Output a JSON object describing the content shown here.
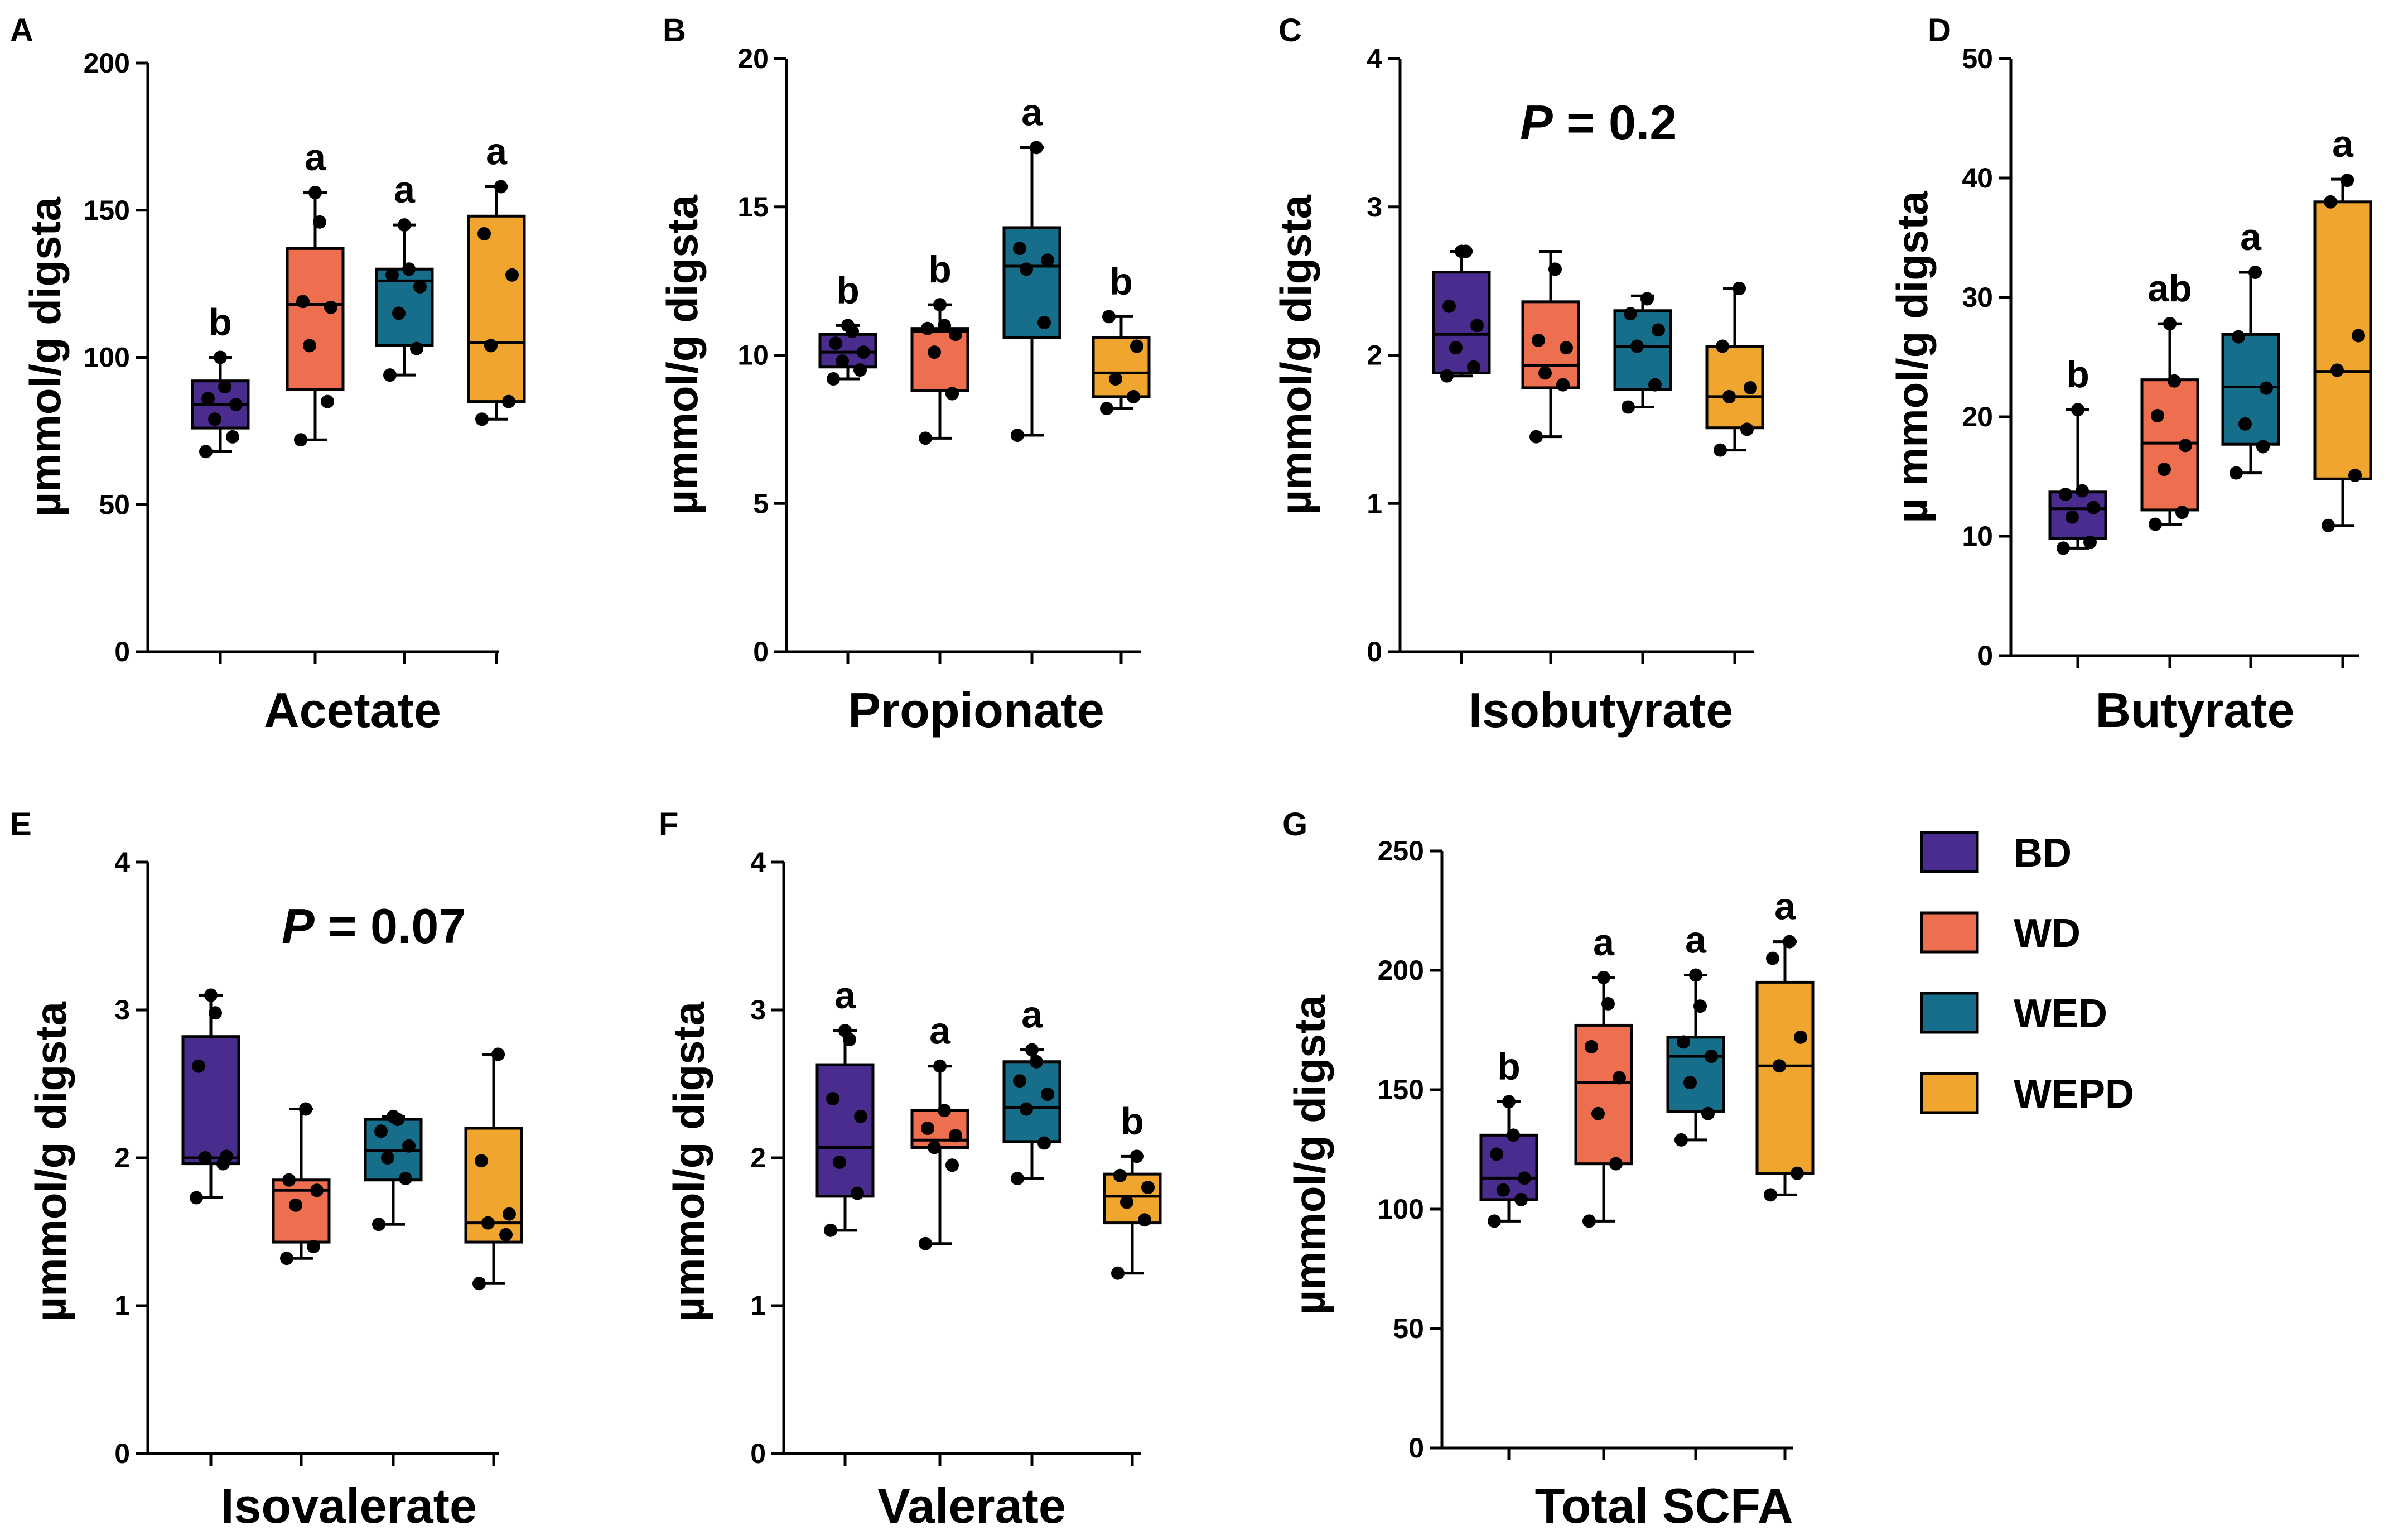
{
  "legend": [
    {
      "key": "BD",
      "label": "BD",
      "color": "#4A2C8F"
    },
    {
      "key": "WD",
      "label": "WD",
      "color": "#EE6E50"
    },
    {
      "key": "WED",
      "label": "WED",
      "color": "#166E8A"
    },
    {
      "key": "WEPD",
      "label": "WEPD",
      "color": "#EFA52E"
    }
  ],
  "chart_data": [
    {
      "id": "A",
      "type": "box",
      "panel_label": "A",
      "title": "",
      "xlabel": "Acetate",
      "ylabel": "µmmol/g digsta",
      "ylim": [
        0,
        200
      ],
      "yticks": [
        0,
        50,
        100,
        150,
        200
      ],
      "pvalue": null,
      "groups": [
        {
          "name": "BD",
          "min": 68,
          "q1": 76,
          "median": 84,
          "q3": 92,
          "max": 100,
          "points": [
            68,
            73,
            79,
            84,
            86,
            90,
            100
          ],
          "letter": "b"
        },
        {
          "name": "WD",
          "min": 72,
          "q1": 89,
          "median": 118,
          "q3": 137,
          "max": 156,
          "points": [
            72,
            85,
            104,
            117,
            119,
            146,
            156
          ],
          "letter": "a"
        },
        {
          "name": "WED",
          "min": 94,
          "q1": 104,
          "median": 126,
          "q3": 130,
          "max": 145,
          "points": [
            94,
            103,
            115,
            124,
            128,
            130,
            145
          ],
          "letter": "a"
        },
        {
          "name": "WEPD",
          "min": 79,
          "q1": 85,
          "median": 105,
          "q3": 148,
          "max": 158,
          "points": [
            79,
            85,
            104,
            128,
            142,
            158
          ],
          "letter": "a"
        }
      ]
    },
    {
      "id": "B",
      "type": "box",
      "panel_label": "B",
      "title": "",
      "xlabel": "Propionate",
      "ylabel": "µmmol/g digsta",
      "ylim": [
        0,
        20
      ],
      "yticks": [
        0,
        5,
        10,
        15,
        20
      ],
      "pvalue": null,
      "groups": [
        {
          "name": "BD",
          "min": 9.2,
          "q1": 9.6,
          "median": 10.1,
          "q3": 10.7,
          "max": 11.0,
          "points": [
            9.2,
            9.5,
            9.8,
            10.1,
            10.4,
            10.8,
            11.0
          ],
          "letter": "b"
        },
        {
          "name": "WD",
          "min": 7.2,
          "q1": 8.8,
          "median": 10.8,
          "q3": 10.9,
          "max": 11.7,
          "points": [
            7.2,
            8.7,
            10.1,
            10.7,
            10.9,
            11.0,
            11.7
          ],
          "letter": "b"
        },
        {
          "name": "WED",
          "min": 7.3,
          "q1": 10.6,
          "median": 13.0,
          "q3": 14.3,
          "max": 17.0,
          "points": [
            7.3,
            11.1,
            12.9,
            13.2,
            13.6,
            17.0
          ],
          "letter": "a"
        },
        {
          "name": "WEPD",
          "min": 8.2,
          "q1": 8.6,
          "median": 9.4,
          "q3": 10.6,
          "max": 11.3,
          "points": [
            8.2,
            8.6,
            9.2,
            10.3,
            11.3
          ],
          "letter": "b"
        }
      ]
    },
    {
      "id": "C",
      "type": "box",
      "panel_label": "C",
      "title": "",
      "xlabel": "Isobutyrate",
      "ylabel": "µmmol/g digsta",
      "ylim": [
        0,
        4
      ],
      "yticks": [
        0,
        1,
        2,
        3,
        4
      ],
      "pvalue": {
        "prefix": "P",
        "text": " = 0.2"
      },
      "groups": [
        {
          "name": "BD",
          "min": 1.86,
          "q1": 1.88,
          "median": 2.14,
          "q3": 2.56,
          "max": 2.7,
          "points": [
            1.86,
            1.92,
            2.05,
            2.2,
            2.33,
            2.7,
            2.7
          ],
          "letter": ""
        },
        {
          "name": "WD",
          "min": 1.45,
          "q1": 1.78,
          "median": 1.93,
          "q3": 2.36,
          "max": 2.7,
          "points": [
            1.45,
            1.8,
            1.88,
            2.05,
            2.1,
            2.58
          ],
          "letter": ""
        },
        {
          "name": "WED",
          "min": 1.65,
          "q1": 1.77,
          "median": 2.06,
          "q3": 2.3,
          "max": 2.4,
          "points": [
            1.65,
            1.8,
            2.06,
            2.17,
            2.28,
            2.38
          ],
          "letter": ""
        },
        {
          "name": "WEPD",
          "min": 1.36,
          "q1": 1.51,
          "median": 1.72,
          "q3": 2.06,
          "max": 2.45,
          "points": [
            1.36,
            1.5,
            1.72,
            1.78,
            2.06,
            2.45
          ],
          "letter": ""
        }
      ]
    },
    {
      "id": "D",
      "type": "box",
      "panel_label": "D",
      "title": "",
      "xlabel": "Butyrate",
      "ylabel": "µ mmol/g digsta",
      "ylim": [
        0,
        50
      ],
      "yticks": [
        0,
        10,
        20,
        30,
        40,
        50
      ],
      "pvalue": null,
      "groups": [
        {
          "name": "BD",
          "min": 9.0,
          "q1": 9.8,
          "median": 12.3,
          "q3": 13.7,
          "max": 20.6,
          "points": [
            9.0,
            9.5,
            11.6,
            12.4,
            13.5,
            13.8,
            20.6
          ],
          "letter": "b"
        },
        {
          "name": "WD",
          "min": 11.0,
          "q1": 12.2,
          "median": 17.8,
          "q3": 23.1,
          "max": 27.8,
          "points": [
            11.0,
            12.0,
            15.6,
            17.6,
            20.1,
            23.0,
            27.8
          ],
          "letter": "ab"
        },
        {
          "name": "WED",
          "min": 15.3,
          "q1": 17.7,
          "median": 22.5,
          "q3": 26.9,
          "max": 32.1,
          "points": [
            15.3,
            17.5,
            19.4,
            22.4,
            26.7,
            32.1
          ],
          "letter": "a"
        },
        {
          "name": "WEPD",
          "min": 10.9,
          "q1": 14.8,
          "median": 23.8,
          "q3": 38.0,
          "max": 39.9,
          "points": [
            10.9,
            15.1,
            23.9,
            26.8,
            38.0,
            39.8
          ],
          "letter": "a"
        }
      ]
    },
    {
      "id": "E",
      "type": "box",
      "panel_label": "E",
      "title": "",
      "xlabel": "Isovalerate",
      "ylabel": "µmmol/g digsta",
      "ylim": [
        0,
        4
      ],
      "yticks": [
        0,
        1,
        2,
        3,
        4
      ],
      "pvalue": {
        "prefix": "P",
        "text": " = 0.07"
      },
      "groups": [
        {
          "name": "BD",
          "min": 1.73,
          "q1": 1.96,
          "median": 2.0,
          "q3": 2.82,
          "max": 3.1,
          "points": [
            1.73,
            1.96,
            2.0,
            2.01,
            2.62,
            2.98,
            3.1
          ],
          "letter": ""
        },
        {
          "name": "WD",
          "min": 1.32,
          "q1": 1.43,
          "median": 1.78,
          "q3": 1.85,
          "max": 2.33,
          "points": [
            1.32,
            1.4,
            1.68,
            1.78,
            1.85,
            2.33
          ],
          "letter": ""
        },
        {
          "name": "WED",
          "min": 1.55,
          "q1": 1.85,
          "median": 2.05,
          "q3": 2.26,
          "max": 2.28,
          "points": [
            1.55,
            1.86,
            2.0,
            2.08,
            2.18,
            2.26,
            2.28
          ],
          "letter": ""
        },
        {
          "name": "WEPD",
          "min": 1.15,
          "q1": 1.43,
          "median": 1.56,
          "q3": 2.2,
          "max": 2.7,
          "points": [
            1.15,
            1.48,
            1.56,
            1.62,
            1.98,
            2.7
          ],
          "letter": ""
        }
      ]
    },
    {
      "id": "F",
      "type": "box",
      "panel_label": "F",
      "title": "",
      "xlabel": "Valerate",
      "ylabel": "µmmol/g digsta",
      "ylim": [
        0,
        4
      ],
      "yticks": [
        0,
        1,
        2,
        3,
        4
      ],
      "pvalue": null,
      "groups": [
        {
          "name": "BD",
          "min": 1.51,
          "q1": 1.74,
          "median": 2.07,
          "q3": 2.63,
          "max": 2.86,
          "points": [
            1.51,
            1.76,
            1.97,
            2.28,
            2.4,
            2.8,
            2.86
          ],
          "letter": "a"
        },
        {
          "name": "WD",
          "min": 1.42,
          "q1": 2.07,
          "median": 2.12,
          "q3": 2.32,
          "max": 2.62,
          "points": [
            1.42,
            1.95,
            2.07,
            2.15,
            2.2,
            2.32,
            2.62
          ],
          "letter": "a"
        },
        {
          "name": "WED",
          "min": 1.86,
          "q1": 2.11,
          "median": 2.34,
          "q3": 2.65,
          "max": 2.73,
          "points": [
            1.86,
            2.1,
            2.33,
            2.43,
            2.52,
            2.65,
            2.73
          ],
          "letter": "a"
        },
        {
          "name": "WEPD",
          "min": 1.22,
          "q1": 1.56,
          "median": 1.74,
          "q3": 1.89,
          "max": 2.01,
          "points": [
            1.22,
            1.58,
            1.7,
            1.8,
            1.88,
            2.01
          ],
          "letter": "b"
        }
      ]
    },
    {
      "id": "G",
      "type": "box",
      "panel_label": "G",
      "title": "",
      "xlabel": "Total SCFA",
      "ylabel": "µmmol/g digsta",
      "ylim": [
        0,
        250
      ],
      "yticks": [
        0,
        50,
        100,
        150,
        200,
        250
      ],
      "pvalue": null,
      "groups": [
        {
          "name": "BD",
          "min": 95,
          "q1": 104,
          "median": 113,
          "q3": 131,
          "max": 145,
          "points": [
            95,
            104,
            108,
            113,
            123,
            131,
            145
          ],
          "letter": "b"
        },
        {
          "name": "WD",
          "min": 95,
          "q1": 119,
          "median": 153,
          "q3": 177,
          "max": 197,
          "points": [
            95,
            119,
            140,
            155,
            168,
            186,
            197
          ],
          "letter": "a"
        },
        {
          "name": "WED",
          "min": 129,
          "q1": 141,
          "median": 164,
          "q3": 172,
          "max": 198,
          "points": [
            129,
            140,
            153,
            164,
            170,
            185,
            198
          ],
          "letter": "a"
        },
        {
          "name": "WEPD",
          "min": 106,
          "q1": 115,
          "median": 160,
          "q3": 195,
          "max": 212,
          "points": [
            106,
            115,
            160,
            172,
            205,
            212
          ],
          "letter": "a"
        }
      ]
    }
  ]
}
